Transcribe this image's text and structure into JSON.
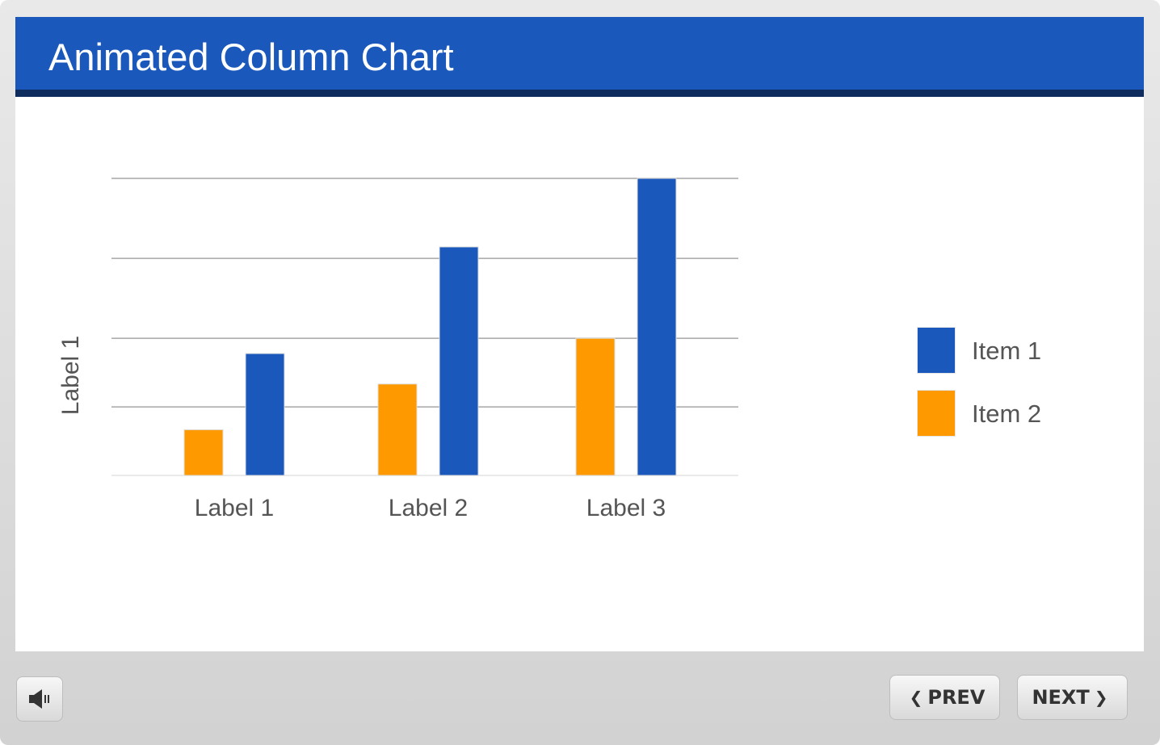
{
  "slide": {
    "title": "Animated Column Chart"
  },
  "chart_data": {
    "type": "bar",
    "title": "Animated Column Chart",
    "xlabel": "",
    "ylabel": "Label 1",
    "categories": [
      "Label 1",
      "Label 2",
      "Label 3"
    ],
    "series": [
      {
        "name": "Item 2",
        "color": "#ff9900",
        "values": [
          0.6,
          1.2,
          1.8
        ]
      },
      {
        "name": "Item 1",
        "color": "#1a58bb",
        "values": [
          1.6,
          3.0,
          3.9
        ]
      }
    ],
    "ylim": [
      0,
      3.9
    ],
    "gridlines": [
      0.9,
      1.8,
      2.85,
      3.9
    ],
    "grid": true,
    "legend_position": "right"
  },
  "legend": {
    "items": [
      {
        "label": "Item 1",
        "color": "#1a58bb"
      },
      {
        "label": "Item 2",
        "color": "#ff9900"
      }
    ]
  },
  "controls": {
    "audio_icon": "speaker-icon",
    "prev_label": "PREV",
    "next_label": "NEXT",
    "prev_icon": "chevron-left-icon",
    "next_icon": "chevron-right-icon"
  }
}
